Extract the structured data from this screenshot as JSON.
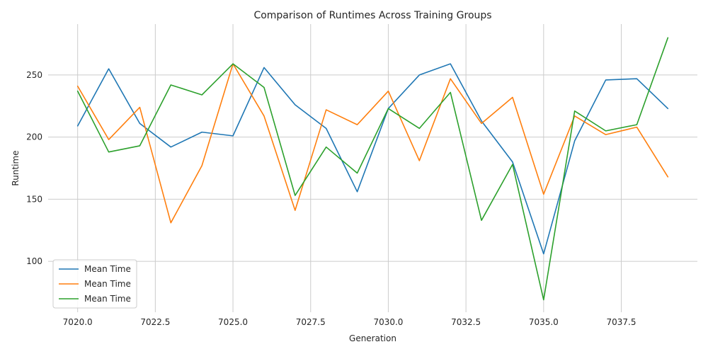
{
  "chart_data": {
    "type": "line",
    "title": "Comparison of Runtimes Across Training Groups",
    "xlabel": "Generation",
    "ylabel": "Runtime",
    "x": [
      7020,
      7021,
      7022,
      7023,
      7024,
      7025,
      7026,
      7027,
      7028,
      7029,
      7030,
      7031,
      7032,
      7033,
      7034,
      7035,
      7036,
      7037,
      7038,
      7039
    ],
    "xlim": [
      7019.05,
      7039.95
    ],
    "ylim": [
      59,
      291
    ],
    "xticks": [
      7020.0,
      7022.5,
      7025.0,
      7027.5,
      7030.0,
      7032.5,
      7035.0,
      7037.5
    ],
    "xtick_labels": [
      "7020.0",
      "7022.5",
      "7025.0",
      "7027.5",
      "7030.0",
      "7032.5",
      "7035.0",
      "7037.5"
    ],
    "yticks": [
      100,
      150,
      200,
      250
    ],
    "ytick_labels": [
      "100",
      "150",
      "200",
      "250"
    ],
    "grid": true,
    "legend_position": "lower-left",
    "series": [
      {
        "name": "Mean Time",
        "color": "#1f77b4",
        "values": [
          209,
          255,
          211,
          192,
          204,
          201,
          256,
          226,
          207,
          156,
          223,
          250,
          259,
          213,
          180,
          106,
          197,
          246,
          247,
          223
        ]
      },
      {
        "name": "Mean Time",
        "color": "#ff7f0e",
        "values": [
          241,
          198,
          224,
          131,
          177,
          259,
          217,
          141,
          222,
          210,
          237,
          181,
          247,
          211,
          232,
          154,
          217,
          202,
          208,
          168
        ]
      },
      {
        "name": "Mean Time",
        "color": "#2ca02c",
        "values": [
          237,
          188,
          193,
          242,
          234,
          259,
          240,
          153,
          192,
          171,
          223,
          207,
          236,
          133,
          178,
          69,
          221,
          205,
          210,
          280
        ]
      }
    ]
  }
}
